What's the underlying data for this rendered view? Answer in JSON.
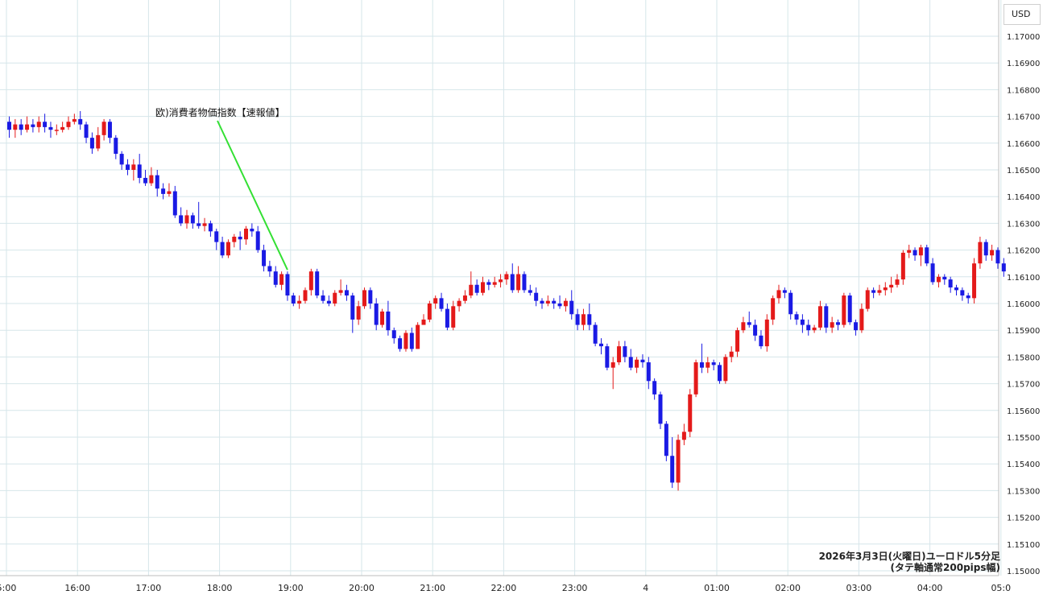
{
  "currency_label": "USD",
  "info": {
    "line1": "2026年3月3日(火曜日)ユーロドル5分足",
    "line2": "(タテ軸通常200pips幅)"
  },
  "colors": {
    "up": "#e41a1a",
    "down": "#1a1ae4",
    "grid": "#d6e6ea",
    "annotation_line": "#33e033",
    "axis_text": "#222222"
  },
  "chart_data": {
    "type": "candlestick",
    "title": "",
    "xlabel": "",
    "ylabel": "USD",
    "ylim": [
      1.15,
      1.1715
    ],
    "y_ticks": [
      "1.17000",
      "1.16900",
      "1.16800",
      "1.16700",
      "1.16600",
      "1.16500",
      "1.16400",
      "1.16300",
      "1.16200",
      "1.16100",
      "1.16000",
      "1.15900",
      "1.15800",
      "1.15700",
      "1.15600",
      "1.15500",
      "1.15400",
      "1.15300",
      "1.15200",
      "1.15100",
      "1.15000"
    ],
    "x_ticks": [
      {
        "label": "5:00",
        "t": 0
      },
      {
        "label": "16:00",
        "t": 12
      },
      {
        "label": "17:00",
        "t": 24
      },
      {
        "label": "18:00",
        "t": 36
      },
      {
        "label": "19:00",
        "t": 48
      },
      {
        "label": "20:00",
        "t": 60
      },
      {
        "label": "21:00",
        "t": 72
      },
      {
        "label": "22:00",
        "t": 84
      },
      {
        "label": "23:00",
        "t": 96
      },
      {
        "label": "4",
        "t": 108
      },
      {
        "label": "01:00",
        "t": 120
      },
      {
        "label": "02:00",
        "t": 132
      },
      {
        "label": "03:00",
        "t": 144
      },
      {
        "label": "04:00",
        "t": 156
      },
      {
        "label": "05:0",
        "t": 168
      }
    ],
    "time_label_note": "t = number of 5-minute bars after the first visible gridline",
    "annotation": {
      "text": "欧)消費者物価指数【速報値】",
      "t": 47
    },
    "candles": [
      [
        1.1668,
        1.1665,
        1.167,
        1.1662
      ],
      [
        1.1665,
        1.1667,
        1.1669,
        1.1662
      ],
      [
        1.1667,
        1.1665,
        1.1669,
        1.1663
      ],
      [
        1.1665,
        1.1667,
        1.167,
        1.1664
      ],
      [
        1.1667,
        1.1666,
        1.1669,
        1.1664
      ],
      [
        1.1666,
        1.1668,
        1.167,
        1.1664
      ],
      [
        1.1668,
        1.1666,
        1.1671,
        1.1664
      ],
      [
        1.1666,
        1.1665,
        1.1668,
        1.1662
      ],
      [
        1.1665,
        1.1665,
        1.1667,
        1.1663
      ],
      [
        1.1665,
        1.1666,
        1.1668,
        1.1664
      ],
      [
        1.1666,
        1.1668,
        1.167,
        1.1665
      ],
      [
        1.1668,
        1.1669,
        1.1671,
        1.1667
      ],
      [
        1.1669,
        1.1667,
        1.1672,
        1.1665
      ],
      [
        1.1667,
        1.1662,
        1.1668,
        1.166
      ],
      [
        1.1662,
        1.1658,
        1.1664,
        1.1656
      ],
      [
        1.1658,
        1.1663,
        1.1666,
        1.1657
      ],
      [
        1.1663,
        1.1668,
        1.1669,
        1.1661
      ],
      [
        1.1668,
        1.1662,
        1.1669,
        1.166
      ],
      [
        1.1662,
        1.1656,
        1.1663,
        1.1654
      ],
      [
        1.1656,
        1.1652,
        1.1657,
        1.165
      ],
      [
        1.1652,
        1.165,
        1.1654,
        1.1648
      ],
      [
        1.165,
        1.1652,
        1.1654,
        1.1646
      ],
      [
        1.1652,
        1.1647,
        1.1656,
        1.1645
      ],
      [
        1.1647,
        1.1645,
        1.165,
        1.1644
      ],
      [
        1.1645,
        1.1648,
        1.1651,
        1.1644
      ],
      [
        1.1648,
        1.1643,
        1.165,
        1.164
      ],
      [
        1.1643,
        1.1641,
        1.1645,
        1.1639
      ],
      [
        1.1641,
        1.1642,
        1.1645,
        1.164
      ],
      [
        1.1642,
        1.1633,
        1.1644,
        1.1632
      ],
      [
        1.1633,
        1.163,
        1.1636,
        1.1629
      ],
      [
        1.163,
        1.1633,
        1.1635,
        1.1628
      ],
      [
        1.1633,
        1.163,
        1.1634,
        1.1628
      ],
      [
        1.163,
        1.1629,
        1.1638,
        1.1628
      ],
      [
        1.1629,
        1.163,
        1.1632,
        1.1627
      ],
      [
        1.163,
        1.1627,
        1.1631,
        1.1625
      ],
      [
        1.1627,
        1.1623,
        1.1628,
        1.162
      ],
      [
        1.1623,
        1.1618,
        1.1625,
        1.1617
      ],
      [
        1.1618,
        1.1623,
        1.1624,
        1.1617
      ],
      [
        1.1623,
        1.1625,
        1.1626,
        1.1621
      ],
      [
        1.1625,
        1.1624,
        1.1627,
        1.162
      ],
      [
        1.1624,
        1.1628,
        1.1629,
        1.1622
      ],
      [
        1.1628,
        1.1627,
        1.163,
        1.1625
      ],
      [
        1.1627,
        1.162,
        1.1629,
        1.1619
      ],
      [
        1.162,
        1.1614,
        1.1622,
        1.1612
      ],
      [
        1.1614,
        1.1612,
        1.1616,
        1.161
      ],
      [
        1.1612,
        1.1607,
        1.1614,
        1.1606
      ],
      [
        1.1607,
        1.1611,
        1.1612,
        1.1605
      ],
      [
        1.1611,
        1.1603,
        1.1612,
        1.1601
      ],
      [
        1.1603,
        1.16,
        1.1604,
        1.1599
      ],
      [
        1.16,
        1.1601,
        1.1603,
        1.1598
      ],
      [
        1.1601,
        1.1605,
        1.1606,
        1.16
      ],
      [
        1.1605,
        1.1612,
        1.1613,
        1.1603
      ],
      [
        1.1612,
        1.1603,
        1.1613,
        1.1602
      ],
      [
        1.1603,
        1.1601,
        1.1605,
        1.16
      ],
      [
        1.1601,
        1.16,
        1.1603,
        1.1599
      ],
      [
        1.16,
        1.1604,
        1.1605,
        1.1599
      ],
      [
        1.1604,
        1.1605,
        1.1609,
        1.1603
      ],
      [
        1.1605,
        1.1603,
        1.1607,
        1.1601
      ],
      [
        1.1603,
        1.1594,
        1.1604,
        1.1589
      ],
      [
        1.1594,
        1.1599,
        1.1601,
        1.1592
      ],
      [
        1.1599,
        1.1605,
        1.1606,
        1.1598
      ],
      [
        1.1605,
        1.16,
        1.1606,
        1.1598
      ],
      [
        1.16,
        1.1592,
        1.1602,
        1.159
      ],
      [
        1.1592,
        1.1597,
        1.1598,
        1.1591
      ],
      [
        1.1597,
        1.159,
        1.1601,
        1.1588
      ],
      [
        1.159,
        1.1587,
        1.1591,
        1.1585
      ],
      [
        1.1587,
        1.1583,
        1.1588,
        1.1582
      ],
      [
        1.1583,
        1.1589,
        1.159,
        1.1582
      ],
      [
        1.1589,
        1.1583,
        1.1591,
        1.1582
      ],
      [
        1.1583,
        1.1592,
        1.1593,
        1.1583
      ],
      [
        1.1592,
        1.1594,
        1.1596,
        1.1592
      ],
      [
        1.1594,
        1.16,
        1.1601,
        1.1593
      ],
      [
        1.16,
        1.1602,
        1.1603,
        1.1598
      ],
      [
        1.1602,
        1.1598,
        1.1604,
        1.1597
      ],
      [
        1.1598,
        1.1591,
        1.16,
        1.159
      ],
      [
        1.1591,
        1.1599,
        1.1601,
        1.159
      ],
      [
        1.1599,
        1.1601,
        1.1602,
        1.1597
      ],
      [
        1.1601,
        1.1603,
        1.1605,
        1.16
      ],
      [
        1.1603,
        1.1607,
        1.1612,
        1.1602
      ],
      [
        1.1607,
        1.1604,
        1.1609,
        1.1603
      ],
      [
        1.1604,
        1.1608,
        1.161,
        1.1603
      ],
      [
        1.1608,
        1.1607,
        1.1609,
        1.1605
      ],
      [
        1.1607,
        1.1608,
        1.161,
        1.1606
      ],
      [
        1.1608,
        1.1609,
        1.1611,
        1.1606
      ],
      [
        1.1609,
        1.1611,
        1.1612,
        1.1607
      ],
      [
        1.1611,
        1.1605,
        1.1615,
        1.1604
      ],
      [
        1.1605,
        1.1611,
        1.1614,
        1.1604
      ],
      [
        1.1611,
        1.1605,
        1.1612,
        1.1604
      ],
      [
        1.1605,
        1.1604,
        1.1607,
        1.1603
      ],
      [
        1.1604,
        1.1601,
        1.1606,
        1.1599
      ],
      [
        1.1601,
        1.16,
        1.1602,
        1.1598
      ],
      [
        1.16,
        1.1601,
        1.1603,
        1.1599
      ],
      [
        1.1601,
        1.16,
        1.1602,
        1.1598
      ],
      [
        1.16,
        1.1599,
        1.1603,
        1.1598
      ],
      [
        1.1599,
        1.1601,
        1.1602,
        1.1597
      ],
      [
        1.1601,
        1.1596,
        1.1605,
        1.1594
      ],
      [
        1.1596,
        1.1592,
        1.1598,
        1.159
      ],
      [
        1.1592,
        1.1596,
        1.1598,
        1.159
      ],
      [
        1.1596,
        1.1592,
        1.16,
        1.159
      ],
      [
        1.1592,
        1.1585,
        1.1593,
        1.1584
      ],
      [
        1.1585,
        1.1584,
        1.1587,
        1.1581
      ],
      [
        1.1584,
        1.1576,
        1.1585,
        1.1575
      ],
      [
        1.1576,
        1.1578,
        1.158,
        1.1568
      ],
      [
        1.1578,
        1.1584,
        1.1586,
        1.1577
      ],
      [
        1.1584,
        1.158,
        1.1586,
        1.1578
      ],
      [
        1.158,
        1.1576,
        1.1583,
        1.1575
      ],
      [
        1.1576,
        1.1579,
        1.158,
        1.1574
      ],
      [
        1.1579,
        1.1578,
        1.1581,
        1.1576
      ],
      [
        1.1578,
        1.1571,
        1.158,
        1.1568
      ],
      [
        1.1571,
        1.1566,
        1.1572,
        1.1564
      ],
      [
        1.1566,
        1.1555,
        1.1567,
        1.1553
      ],
      [
        1.1555,
        1.1543,
        1.1556,
        1.1541
      ],
      [
        1.1543,
        1.1533,
        1.155,
        1.1531
      ],
      [
        1.1533,
        1.1549,
        1.1551,
        1.153
      ],
      [
        1.1549,
        1.1552,
        1.1555,
        1.1547
      ],
      [
        1.1552,
        1.1566,
        1.1568,
        1.155
      ],
      [
        1.1566,
        1.1578,
        1.1579,
        1.1565
      ],
      [
        1.1578,
        1.1576,
        1.1585,
        1.1574
      ],
      [
        1.1576,
        1.1578,
        1.158,
        1.1574
      ],
      [
        1.1578,
        1.1577,
        1.1579,
        1.1575
      ],
      [
        1.1577,
        1.1571,
        1.1578,
        1.157
      ],
      [
        1.1571,
        1.158,
        1.1581,
        1.157
      ],
      [
        1.158,
        1.1582,
        1.1584,
        1.1578
      ],
      [
        1.1582,
        1.159,
        1.1591,
        1.158
      ],
      [
        1.159,
        1.1593,
        1.1595,
        1.1589
      ],
      [
        1.1593,
        1.1592,
        1.1597,
        1.1591
      ],
      [
        1.1592,
        1.1588,
        1.1594,
        1.1586
      ],
      [
        1.1588,
        1.1584,
        1.159,
        1.1583
      ],
      [
        1.1584,
        1.1594,
        1.1596,
        1.1582
      ],
      [
        1.1594,
        1.1602,
        1.1603,
        1.1592
      ],
      [
        1.1602,
        1.1605,
        1.1607,
        1.16
      ],
      [
        1.1605,
        1.1604,
        1.1606,
        1.1602
      ],
      [
        1.1604,
        1.1596,
        1.1605,
        1.1594
      ],
      [
        1.1596,
        1.1594,
        1.1597,
        1.1592
      ],
      [
        1.1594,
        1.1592,
        1.1596,
        1.1589
      ],
      [
        1.1592,
        1.159,
        1.1594,
        1.1588
      ],
      [
        1.159,
        1.1591,
        1.1592,
        1.1589
      ],
      [
        1.1591,
        1.1599,
        1.1601,
        1.159
      ],
      [
        1.1599,
        1.1591,
        1.16,
        1.1589
      ],
      [
        1.1591,
        1.1593,
        1.1595,
        1.1589
      ],
      [
        1.1593,
        1.1592,
        1.1594,
        1.159
      ],
      [
        1.1592,
        1.1603,
        1.1604,
        1.1591
      ],
      [
        1.1603,
        1.1593,
        1.1604,
        1.1592
      ],
      [
        1.1593,
        1.159,
        1.1594,
        1.1588
      ],
      [
        1.159,
        1.1598,
        1.16,
        1.1589
      ],
      [
        1.1598,
        1.1605,
        1.1606,
        1.1597
      ],
      [
        1.1605,
        1.1604,
        1.1606,
        1.1602
      ],
      [
        1.1604,
        1.1605,
        1.1607,
        1.1603
      ],
      [
        1.1605,
        1.1606,
        1.1608,
        1.1603
      ],
      [
        1.1606,
        1.1607,
        1.161,
        1.1604
      ],
      [
        1.1607,
        1.1609,
        1.1611,
        1.1606
      ],
      [
        1.1609,
        1.1619,
        1.162,
        1.1607
      ],
      [
        1.1619,
        1.162,
        1.1622,
        1.1617
      ],
      [
        1.162,
        1.1618,
        1.1621,
        1.1616
      ],
      [
        1.1618,
        1.1621,
        1.1622,
        1.1614
      ],
      [
        1.1621,
        1.1615,
        1.1622,
        1.1614
      ],
      [
        1.1615,
        1.1608,
        1.1617,
        1.1607
      ],
      [
        1.1608,
        1.161,
        1.1611,
        1.1606
      ],
      [
        1.161,
        1.1609,
        1.1611,
        1.1607
      ],
      [
        1.1609,
        1.1606,
        1.161,
        1.1604
      ],
      [
        1.1606,
        1.1605,
        1.1607,
        1.1603
      ],
      [
        1.1605,
        1.1603,
        1.1606,
        1.1601
      ],
      [
        1.1603,
        1.1602,
        1.1604,
        1.16
      ],
      [
        1.1602,
        1.1615,
        1.1617,
        1.16
      ],
      [
        1.1615,
        1.1623,
        1.1625,
        1.1613
      ],
      [
        1.1623,
        1.1618,
        1.1624,
        1.1616
      ],
      [
        1.1618,
        1.162,
        1.1622,
        1.1616
      ],
      [
        1.162,
        1.1615,
        1.1621,
        1.1613
      ],
      [
        1.1615,
        1.1612,
        1.1617,
        1.161
      ]
    ]
  }
}
